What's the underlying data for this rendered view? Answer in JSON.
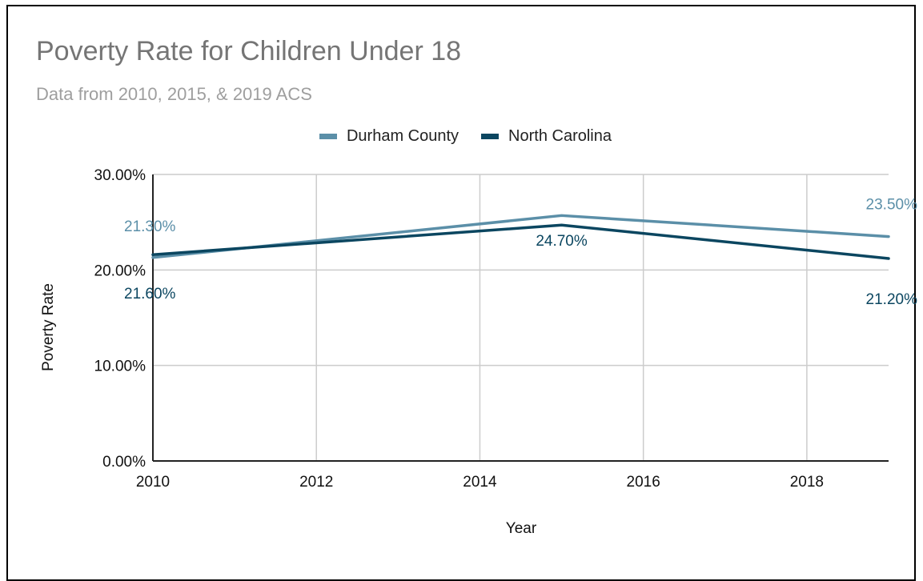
{
  "chart_data": {
    "type": "line",
    "title": "Poverty Rate for Children Under 18",
    "subtitle": "Data from 2010, 2015, & 2019 ACS",
    "xlabel": "Year",
    "ylabel": "Poverty Rate",
    "xlim": [
      2010,
      2019
    ],
    "ylim": [
      0,
      30
    ],
    "x_ticks": [
      2010,
      2012,
      2014,
      2016,
      2018
    ],
    "x_tick_labels": [
      "2010",
      "2012",
      "2014",
      "2016",
      "2018"
    ],
    "y_ticks": [
      0,
      10,
      20,
      30
    ],
    "y_tick_labels": [
      "0.00%",
      "10.00%",
      "20.00%",
      "30.00%"
    ],
    "grid": true,
    "legend_position": "top-center",
    "series": [
      {
        "name": "Durham County",
        "color": "#5b8fa8",
        "x": [
          2010,
          2015,
          2019
        ],
        "values": [
          21.3,
          25.7,
          23.5
        ],
        "data_labels": [
          "21.30%",
          "",
          "23.50%"
        ]
      },
      {
        "name": "North Carolina",
        "color": "#0b4660",
        "x": [
          2010,
          2015,
          2019
        ],
        "values": [
          21.6,
          24.7,
          21.2
        ],
        "data_labels": [
          "21.60%",
          "24.70%",
          "21.20%"
        ]
      }
    ]
  }
}
